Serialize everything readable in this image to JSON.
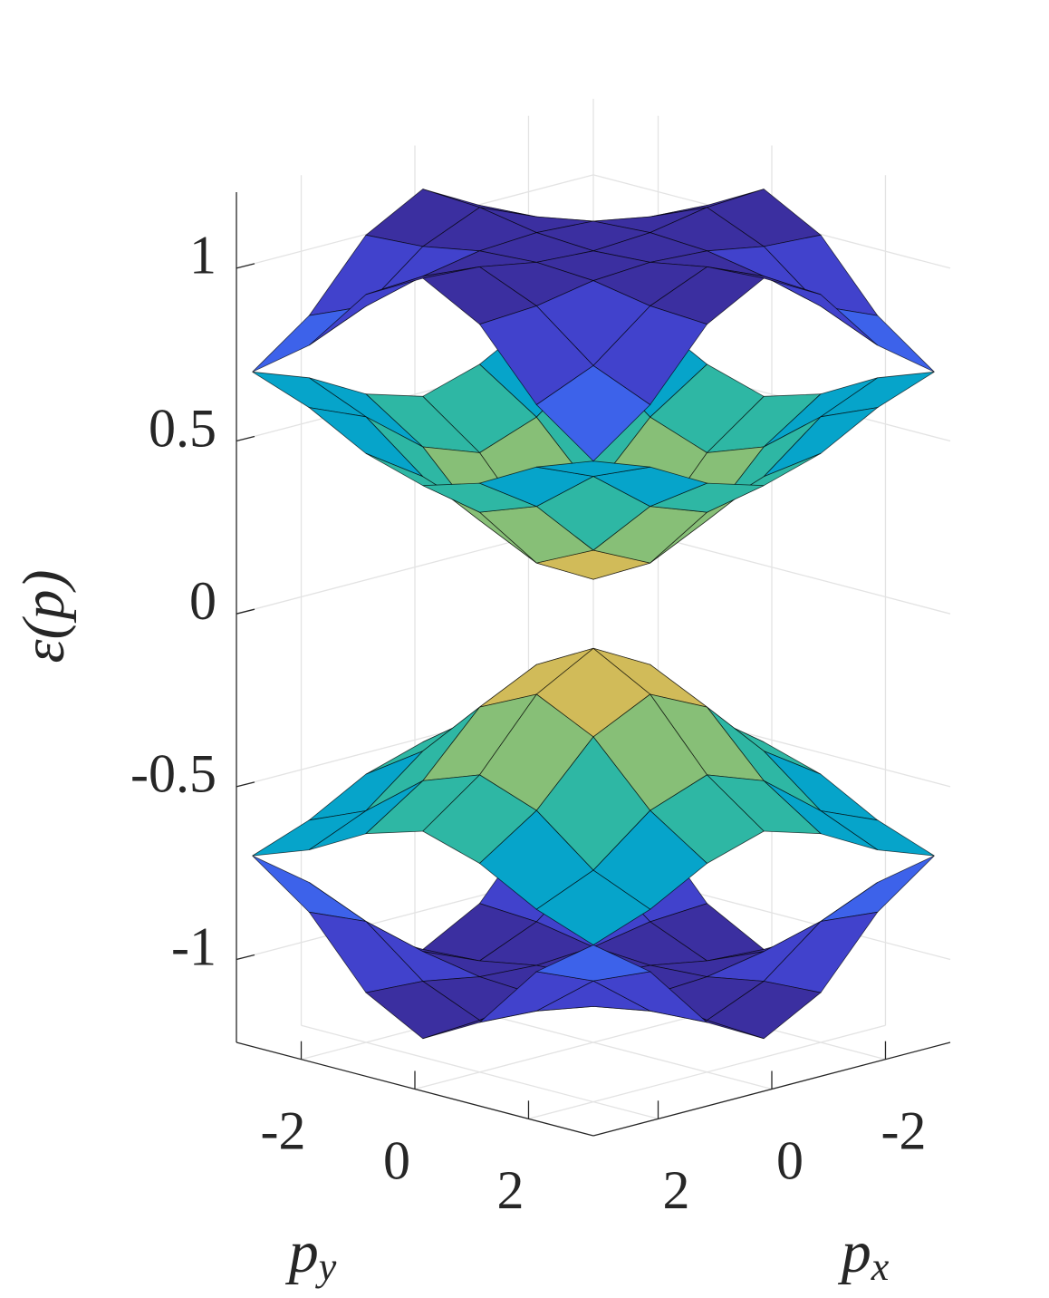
{
  "chart_data": {
    "type": "surface",
    "zlabel": "ε(p)",
    "xlabel": {
      "text": "p",
      "sub": "x"
    },
    "ylabel": {
      "text": "p",
      "sub": "y"
    },
    "x": [
      -3,
      -2,
      -1,
      0,
      1,
      2,
      3
    ],
    "y": [
      -3,
      -2,
      -1,
      0,
      1,
      2,
      3
    ],
    "xlim": [
      -3.14,
      3.14
    ],
    "ylim": [
      -3.14,
      3.14
    ],
    "zlim": [
      -1.24,
      1.22
    ],
    "xticks": [
      -2,
      0,
      2
    ],
    "yticks": [
      -2,
      0,
      2
    ],
    "zticks": [
      -1,
      -0.5,
      0,
      0.5,
      1
    ],
    "grid": true,
    "clim": [
      0.1,
      1.1
    ],
    "colormap": [
      "#fcc43a",
      "#d1bb59",
      "#87bf77",
      "#2eb7a4",
      "#06a4ca",
      "#1d8ee0",
      "#3d62ea",
      "#4142cc",
      "#3b2fa0"
    ],
    "edge_color": "#000000",
    "surfaces": [
      {
        "z": [
          [
            0.7,
            0.82,
            1.01,
            1.1,
            1.01,
            0.82,
            0.7
          ],
          [
            0.82,
            0.89,
            1.02,
            1.09,
            1.02,
            0.89,
            0.82
          ],
          [
            1.01,
            1.02,
            1.05,
            1.06,
            1.05,
            1.02,
            1.01
          ],
          [
            1.1,
            1.09,
            1.06,
            1.05,
            1.06,
            1.09,
            1.1
          ],
          [
            1.01,
            1.02,
            1.05,
            1.06,
            1.05,
            1.02,
            1.01
          ],
          [
            0.82,
            0.89,
            1.02,
            1.09,
            1.02,
            0.89,
            0.82
          ],
          [
            0.7,
            0.82,
            1.01,
            1.1,
            1.01,
            0.82,
            0.7
          ]
        ]
      },
      {
        "z": [
          [
            0.7,
            0.64,
            0.55,
            0.5,
            0.55,
            0.64,
            0.7
          ],
          [
            0.64,
            0.57,
            0.44,
            0.38,
            0.44,
            0.57,
            0.64
          ],
          [
            0.55,
            0.44,
            0.27,
            0.19,
            0.27,
            0.44,
            0.55
          ],
          [
            0.5,
            0.38,
            0.19,
            0.1,
            0.19,
            0.38,
            0.5
          ],
          [
            0.55,
            0.44,
            0.27,
            0.19,
            0.27,
            0.44,
            0.55
          ],
          [
            0.64,
            0.57,
            0.44,
            0.38,
            0.44,
            0.57,
            0.64
          ],
          [
            0.7,
            0.64,
            0.55,
            0.5,
            0.55,
            0.64,
            0.7
          ]
        ]
      },
      {
        "z": [
          [
            -0.7,
            -0.64,
            -0.55,
            -0.5,
            -0.55,
            -0.64,
            -0.7
          ],
          [
            -0.64,
            -0.57,
            -0.44,
            -0.38,
            -0.44,
            -0.57,
            -0.64
          ],
          [
            -0.55,
            -0.44,
            -0.27,
            -0.19,
            -0.27,
            -0.44,
            -0.55
          ],
          [
            -0.5,
            -0.38,
            -0.19,
            -0.1,
            -0.19,
            -0.38,
            -0.5
          ],
          [
            -0.55,
            -0.44,
            -0.27,
            -0.19,
            -0.27,
            -0.44,
            -0.55
          ],
          [
            -0.64,
            -0.57,
            -0.44,
            -0.38,
            -0.44,
            -0.57,
            -0.64
          ],
          [
            -0.7,
            -0.64,
            -0.55,
            -0.5,
            -0.55,
            -0.64,
            -0.7
          ]
        ]
      },
      {
        "z": [
          [
            -0.7,
            -0.82,
            -1.01,
            -1.1,
            -1.01,
            -0.82,
            -0.7
          ],
          [
            -0.82,
            -0.89,
            -1.02,
            -1.09,
            -1.02,
            -0.89,
            -0.82
          ],
          [
            -1.01,
            -1.02,
            -1.05,
            -1.06,
            -1.05,
            -1.02,
            -1.01
          ],
          [
            -1.1,
            -1.09,
            -1.06,
            -1.05,
            -1.06,
            -1.09,
            -1.1
          ],
          [
            -1.01,
            -1.02,
            -1.05,
            -1.06,
            -1.05,
            -1.02,
            -1.01
          ],
          [
            -0.82,
            -0.89,
            -1.02,
            -1.09,
            -1.02,
            -0.89,
            -0.82
          ],
          [
            -0.7,
            -0.82,
            -1.01,
            -1.1,
            -1.01,
            -0.82,
            -0.7
          ]
        ]
      }
    ]
  }
}
